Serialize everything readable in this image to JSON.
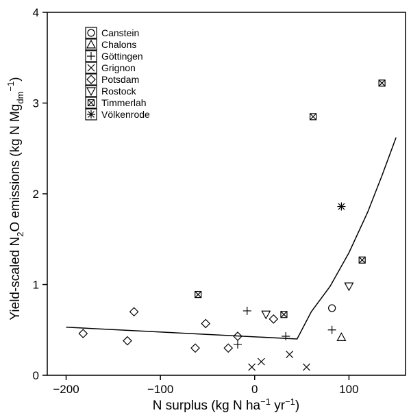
{
  "chart_data": {
    "type": "scatter",
    "xlabel": {
      "base": "N surplus (kg N ha",
      "sup1": "−1",
      "mid": " yr",
      "sup2": "−1",
      "end": ")"
    },
    "ylabel": {
      "a": "Yield-scaled N",
      "sub1": "2",
      "b": "O emissions (kg N Mg",
      "sub2": "dm",
      "sup": "−1",
      "c": ")"
    },
    "xlim": [
      -220,
      160
    ],
    "ylim": [
      0,
      4
    ],
    "xticks": [
      -200,
      -100,
      0,
      100
    ],
    "xtick_labels": [
      "−200",
      "−100",
      "0",
      "100"
    ],
    "yticks": [
      0,
      1,
      2,
      3,
      4
    ],
    "ytick_labels": [
      "0",
      "1",
      "2",
      "3",
      "4"
    ],
    "grid": false,
    "legend_position": "top-left",
    "series": [
      {
        "name": "Canstein",
        "marker": "circle",
        "points": [
          [
            82,
            0.74
          ]
        ]
      },
      {
        "name": "Chalons",
        "marker": "triangle-up",
        "points": [
          [
            92,
            0.42
          ]
        ]
      },
      {
        "name": "Göttingen",
        "marker": "plus",
        "points": [
          [
            -18,
            0.34
          ],
          [
            -8,
            0.71
          ],
          [
            33,
            0.43
          ],
          [
            82,
            0.5
          ]
        ]
      },
      {
        "name": "Grignon",
        "marker": "x",
        "points": [
          [
            -3,
            0.09
          ],
          [
            7,
            0.15
          ],
          [
            37,
            0.23
          ],
          [
            55,
            0.09
          ]
        ]
      },
      {
        "name": "Potsdam",
        "marker": "diamond",
        "points": [
          [
            -182,
            0.46
          ],
          [
            -135,
            0.38
          ],
          [
            -128,
            0.7
          ],
          [
            -63,
            0.3
          ],
          [
            -52,
            0.57
          ],
          [
            -28,
            0.3
          ],
          [
            -18,
            0.43
          ],
          [
            20,
            0.62
          ]
        ]
      },
      {
        "name": "Rostock",
        "marker": "triangle-down",
        "points": [
          [
            12,
            0.67
          ],
          [
            100,
            0.98
          ]
        ]
      },
      {
        "name": "Timmerlah",
        "marker": "square-x",
        "points": [
          [
            -60,
            0.89
          ],
          [
            31,
            0.67
          ],
          [
            62,
            2.85
          ],
          [
            114,
            1.27
          ],
          [
            135,
            3.22
          ]
        ]
      },
      {
        "name": "Völkenrode",
        "marker": "asterisk",
        "points": [
          [
            92,
            1.86
          ]
        ]
      }
    ],
    "fit_line": [
      [
        -200,
        0.53
      ],
      [
        45,
        0.4
      ],
      [
        60,
        0.7
      ],
      [
        80,
        0.98
      ],
      [
        100,
        1.35
      ],
      [
        120,
        1.8
      ],
      [
        135,
        2.2
      ],
      [
        150,
        2.62
      ]
    ]
  }
}
